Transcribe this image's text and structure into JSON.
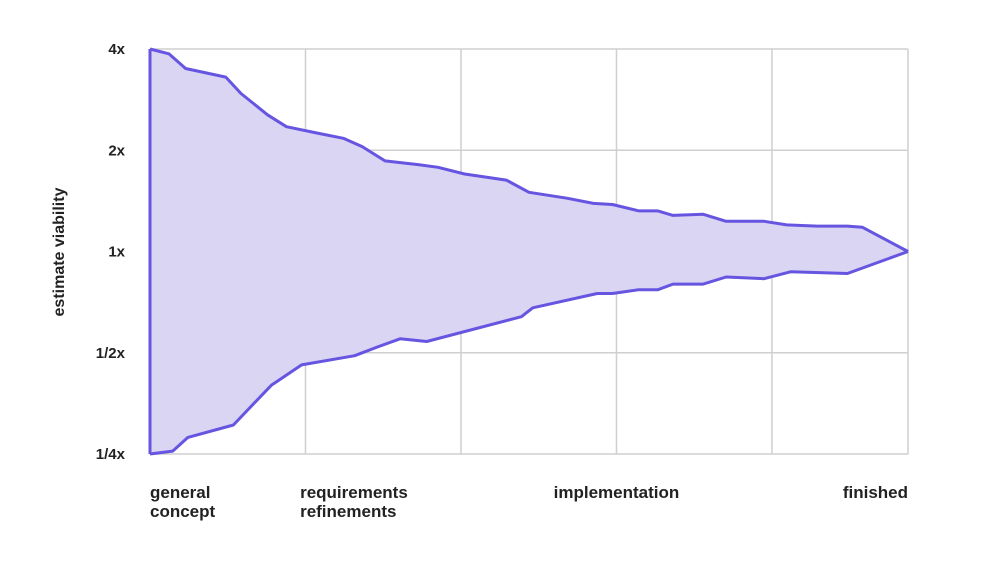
{
  "chart_data": {
    "type": "area",
    "title": "",
    "ylabel": "estimate viability",
    "y_scale": "log2",
    "y_ticks": [
      {
        "value": 0.25,
        "label": "1/4x"
      },
      {
        "value": 0.5,
        "label": "1/2x"
      },
      {
        "value": 1,
        "label": "1x"
      },
      {
        "value": 2,
        "label": "2x"
      },
      {
        "value": 4,
        "label": "4x"
      }
    ],
    "ylim": [
      0.25,
      4
    ],
    "xlim": [
      0,
      1
    ],
    "x_gridlines": [
      0,
      0.2051,
      0.4103,
      0.6154,
      0.8205,
      1
    ],
    "categories": [
      {
        "x": 0,
        "label": [
          "general",
          "concept"
        ],
        "align": "start"
      },
      {
        "x": 0.198,
        "label": [
          "requirements",
          "refinements"
        ],
        "align": "start"
      },
      {
        "x": 0.6154,
        "label": [
          "implementation"
        ],
        "align": "middle"
      },
      {
        "x": 1,
        "label": [
          "finished"
        ],
        "align": "end"
      }
    ],
    "grid": true,
    "series": [
      {
        "values": [
          [
            0,
            4
          ],
          [
            0.025,
            3.87
          ],
          [
            0.047,
            3.5
          ],
          [
            0.1,
            3.3
          ],
          [
            0.12,
            2.95
          ],
          [
            0.155,
            2.55
          ],
          [
            0.18,
            2.35
          ],
          [
            0.22,
            2.25
          ],
          [
            0.255,
            2.17
          ],
          [
            0.28,
            2.05
          ],
          [
            0.31,
            1.86
          ],
          [
            0.355,
            1.81
          ],
          [
            0.38,
            1.78
          ],
          [
            0.415,
            1.7
          ],
          [
            0.47,
            1.63
          ],
          [
            0.5,
            1.5
          ],
          [
            0.55,
            1.44
          ],
          [
            0.585,
            1.39
          ],
          [
            0.61,
            1.38
          ],
          [
            0.645,
            1.32
          ],
          [
            0.67,
            1.32
          ],
          [
            0.69,
            1.28
          ],
          [
            0.73,
            1.29
          ],
          [
            0.76,
            1.23
          ],
          [
            0.81,
            1.23
          ],
          [
            0.84,
            1.2
          ],
          [
            0.88,
            1.19
          ],
          [
            0.92,
            1.19
          ],
          [
            0.94,
            1.18
          ],
          [
            1,
            1
          ]
        ]
      },
      {
        "values": [
          [
            0,
            0.25
          ],
          [
            0.03,
            0.255
          ],
          [
            0.05,
            0.28
          ],
          [
            0.11,
            0.305
          ],
          [
            0.13,
            0.34
          ],
          [
            0.16,
            0.4
          ],
          [
            0.2,
            0.46
          ],
          [
            0.27,
            0.49
          ],
          [
            0.3,
            0.52
          ],
          [
            0.33,
            0.55
          ],
          [
            0.365,
            0.54
          ],
          [
            0.49,
            0.64
          ],
          [
            0.505,
            0.68
          ],
          [
            0.59,
            0.75
          ],
          [
            0.61,
            0.75
          ],
          [
            0.645,
            0.77
          ],
          [
            0.67,
            0.77
          ],
          [
            0.69,
            0.8
          ],
          [
            0.73,
            0.8
          ],
          [
            0.76,
            0.84
          ],
          [
            0.81,
            0.83
          ],
          [
            0.845,
            0.87
          ],
          [
            0.92,
            0.86
          ],
          [
            1,
            1
          ]
        ]
      }
    ],
    "line_color": "#6655e0",
    "fill_color": "#d9d5f3",
    "grid_color": "#cfcfcf"
  }
}
